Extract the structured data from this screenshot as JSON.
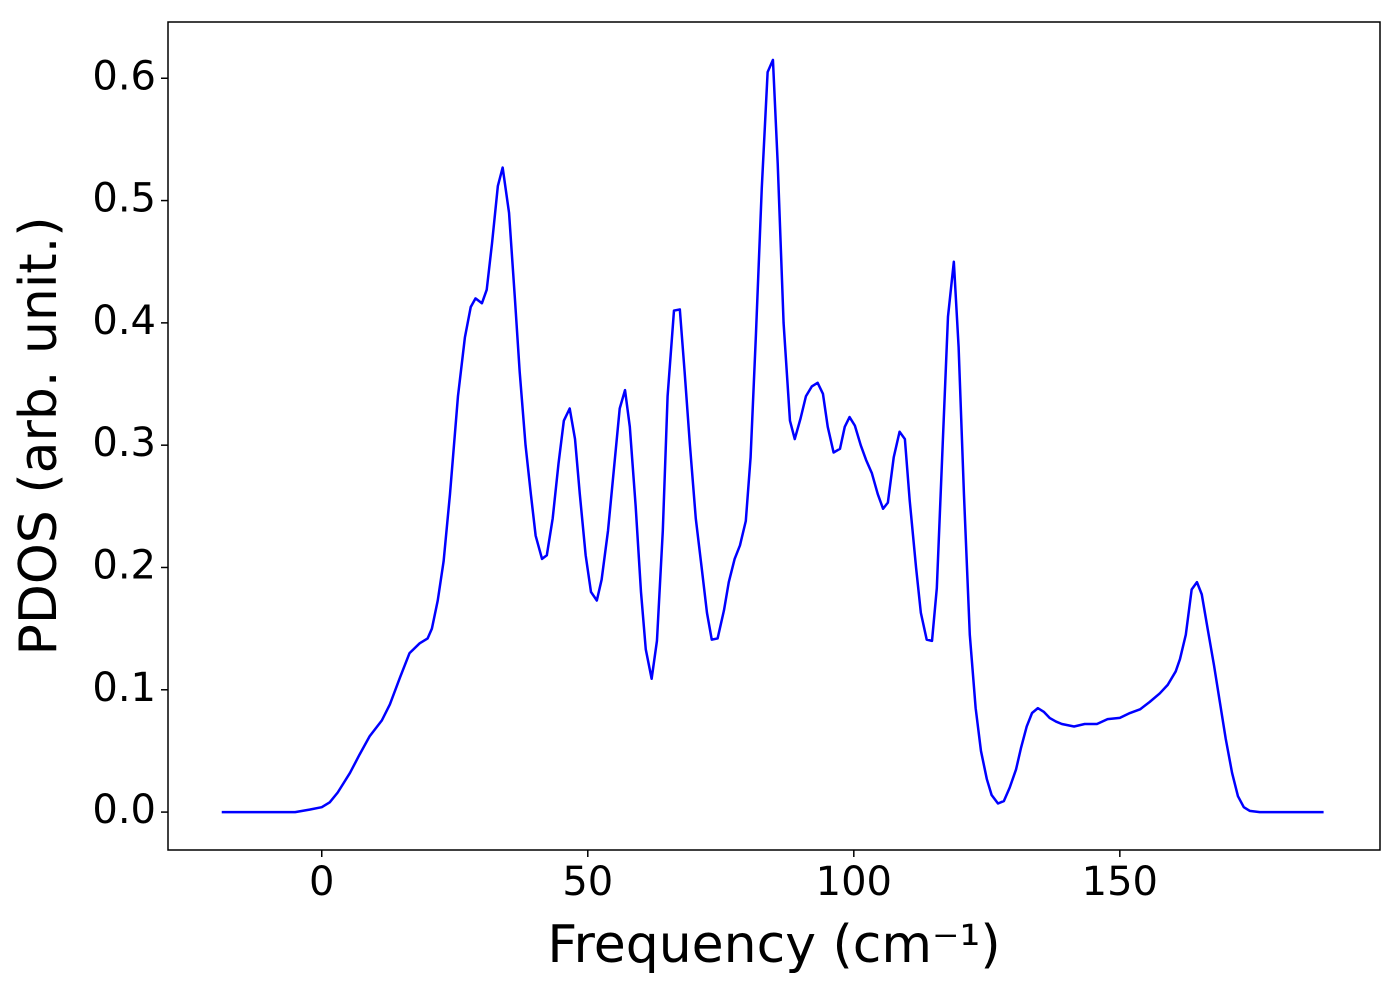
{
  "chart_data": {
    "type": "line",
    "xlabel": "Frequency (cm⁻¹)",
    "ylabel": "PDOS (arb. unit.)",
    "xlim": [
      -28.9,
      198.9
    ],
    "ylim": [
      -0.031,
      0.646
    ],
    "xticks": [
      0,
      50,
      100,
      150
    ],
    "yticks": [
      {
        "value": 0,
        "label": "0.0"
      },
      0.1,
      0.2,
      0.3,
      0.4,
      0.5,
      0.6
    ],
    "x": [
      -18.8,
      -5,
      -2.3,
      0,
      1.5,
      3,
      5.3,
      7.1,
      9,
      11.3,
      12.8,
      14.7,
      16.5,
      18.4,
      19.9,
      20.7,
      21.8,
      22.9,
      24.1,
      25.6,
      26.9,
      28,
      28.9,
      30.1,
      31,
      32,
      33.1,
      34,
      35.2,
      36.3,
      37.2,
      38.3,
      39.3,
      40.2,
      41.4,
      42.3,
      43.4,
      44.5,
      45.5,
      46.6,
      47.6,
      48.5,
      49.6,
      50.6,
      51.7,
      52.6,
      53.8,
      54.9,
      56,
      57,
      57.9,
      59,
      60,
      60.9,
      62,
      63,
      64.1,
      65,
      66.2,
      67.3,
      68.2,
      69.2,
      70.3,
      71.4,
      72.4,
      73.3,
      74.4,
      75.6,
      76.5,
      77.6,
      78.6,
      79.7,
      80.6,
      81.6,
      82.7,
      83.8,
      84.8,
      85.7,
      86.8,
      88,
      88.9,
      90,
      91,
      92.1,
      93.2,
      94.2,
      95.1,
      96.2,
      97.4,
      98.3,
      99.2,
      100.2,
      101.3,
      102.3,
      103.4,
      104.5,
      105.5,
      106.4,
      107.5,
      108.6,
      109.6,
      110.5,
      111.7,
      112.6,
      113.7,
      114.7,
      115.6,
      116.7,
      117.7,
      118.8,
      119.7,
      120.7,
      121.8,
      122.9,
      123.9,
      125,
      125.9,
      127.1,
      128.2,
      129.3,
      130.5,
      131.4,
      132.5,
      133.5,
      134.6,
      135.7,
      136.8,
      138,
      139.1,
      141.4,
      143.4,
      145.7,
      147.7,
      150,
      151.9,
      153.8,
      155.6,
      157.5,
      159,
      160.5,
      161.3,
      162.4,
      163.5,
      164.5,
      165.4,
      166.5,
      167.7,
      168.8,
      169.9,
      171.1,
      172.2,
      173.3,
      174.4,
      176.3,
      188.3
    ],
    "series": [
      {
        "color": "#0000ff",
        "values": [
          0,
          0,
          0.002,
          0.004,
          0.008,
          0.016,
          0.032,
          0.047,
          0.062,
          0.075,
          0.088,
          0.11,
          0.13,
          0.138,
          0.142,
          0.15,
          0.173,
          0.205,
          0.26,
          0.34,
          0.388,
          0.413,
          0.42,
          0.416,
          0.427,
          0.465,
          0.512,
          0.527,
          0.49,
          0.42,
          0.36,
          0.3,
          0.26,
          0.226,
          0.207,
          0.21,
          0.24,
          0.285,
          0.32,
          0.33,
          0.305,
          0.26,
          0.21,
          0.18,
          0.173,
          0.19,
          0.23,
          0.28,
          0.33,
          0.345,
          0.315,
          0.25,
          0.18,
          0.133,
          0.109,
          0.14,
          0.23,
          0.34,
          0.41,
          0.411,
          0.36,
          0.3,
          0.24,
          0.2,
          0.163,
          0.141,
          0.142,
          0.165,
          0.188,
          0.207,
          0.218,
          0.238,
          0.29,
          0.39,
          0.51,
          0.605,
          0.615,
          0.53,
          0.4,
          0.32,
          0.305,
          0.322,
          0.34,
          0.348,
          0.351,
          0.342,
          0.315,
          0.294,
          0.297,
          0.315,
          0.323,
          0.316,
          0.3,
          0.288,
          0.277,
          0.26,
          0.248,
          0.253,
          0.29,
          0.311,
          0.305,
          0.255,
          0.2,
          0.163,
          0.141,
          0.14,
          0.183,
          0.3,
          0.405,
          0.45,
          0.38,
          0.26,
          0.145,
          0.085,
          0.05,
          0.027,
          0.014,
          0.007,
          0.009,
          0.02,
          0.035,
          0.052,
          0.07,
          0.081,
          0.085,
          0.082,
          0.077,
          0.074,
          0.072,
          0.07,
          0.072,
          0.072,
          0.076,
          0.077,
          0.081,
          0.084,
          0.09,
          0.097,
          0.104,
          0.115,
          0.125,
          0.145,
          0.182,
          0.188,
          0.178,
          0.15,
          0.12,
          0.09,
          0.06,
          0.032,
          0.013,
          0.004,
          0.001,
          0,
          0
        ]
      }
    ]
  }
}
